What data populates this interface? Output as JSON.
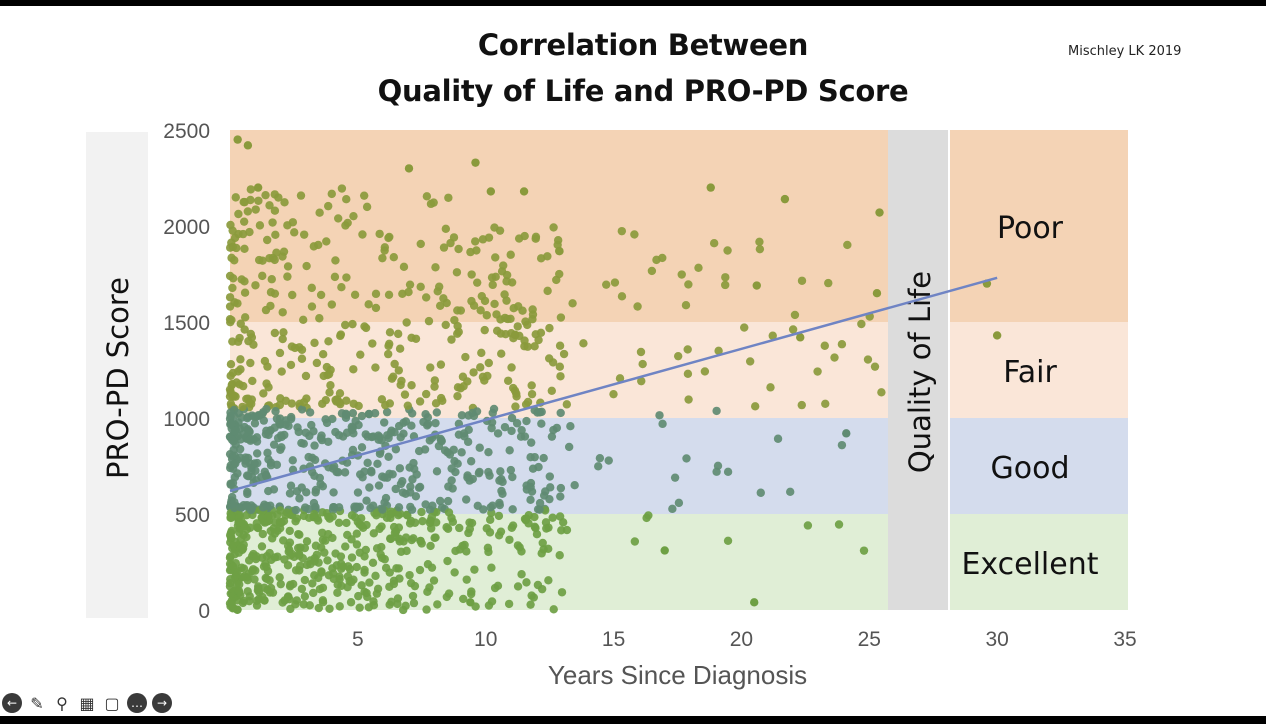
{
  "title_line1": "Correlation Between",
  "title_line2": "Quality of Life and PRO-PD Score",
  "citation": "Mischley LK 2019",
  "toolbar": {
    "icons": [
      "back-icon",
      "pen-icon",
      "zoom-icon",
      "captions-icon",
      "video-off-icon",
      "more-icon",
      "forward-icon"
    ]
  },
  "chart_data": {
    "type": "scatter",
    "xlabel": "Years Since Diagnosis",
    "ylabel": "PRO-PD Score",
    "xlim": [
      0,
      35
    ],
    "ylim": [
      0,
      2500
    ],
    "xticks": [
      5,
      10,
      15,
      20,
      25,
      30,
      35
    ],
    "yticks": [
      0,
      500,
      1000,
      1500,
      2000,
      2500
    ],
    "qol_label": "Quality of Life",
    "qol_bands": [
      {
        "label": "Poor",
        "from": 1500,
        "to": 2500,
        "color": "#f4d3b5"
      },
      {
        "label": "Fair",
        "from": 1000,
        "to": 1500,
        "color": "#fae6d8"
      },
      {
        "label": "Good",
        "from": 500,
        "to": 1000,
        "color": "#d4dced"
      },
      {
        "label": "Excellent",
        "from": 0,
        "to": 500,
        "color": "#e0eed6"
      }
    ],
    "regression_line": {
      "x": [
        0,
        30
      ],
      "y": [
        620,
        1730
      ],
      "color": "#6f84c4"
    },
    "point_colors": {
      "high": "#8a9a3c",
      "mid": "#5f8b72",
      "low": "#6ea044"
    },
    "highlighted_points": {
      "x": [
        0.3,
        0.7,
        1.1,
        7.0,
        9.6,
        10.2,
        11.5,
        18.8,
        21.7,
        25.4,
        25.3,
        20.6,
        22.3,
        24.1,
        9.4,
        20.5,
        17.0,
        29.6,
        30.0
      ],
      "y": [
        2450,
        2420,
        2200,
        2300,
        2330,
        2180,
        2180,
        2200,
        2140,
        2070,
        1650,
        1690,
        1420,
        920,
        40,
        40,
        310,
        1700,
        1430
      ]
    },
    "cluster_points": {
      "count": 1300,
      "note": "dense cloud concentrated at 0-12 years, 0-1800 score"
    }
  }
}
